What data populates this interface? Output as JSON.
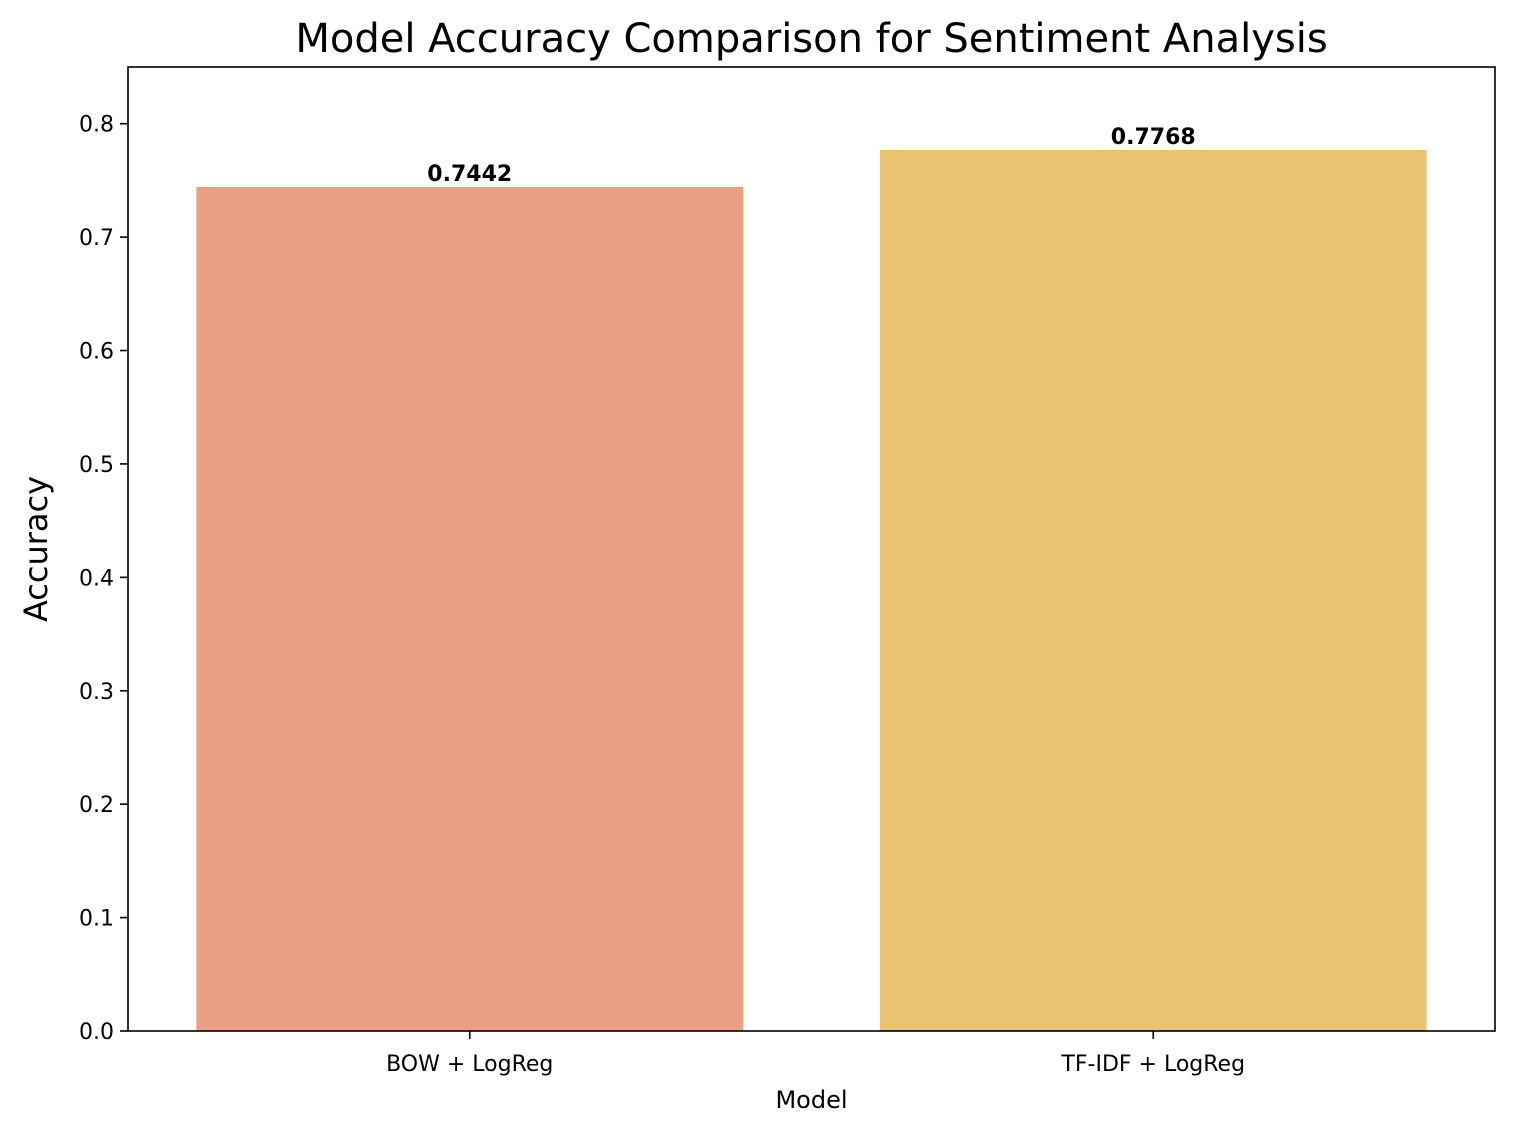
{
  "chart_data": {
    "type": "bar",
    "title": "Model Accuracy Comparison for Sentiment Analysis",
    "xlabel": "Model",
    "ylabel": "Accuracy",
    "categories": [
      "BOW + LogReg",
      "TF-IDF + LogReg"
    ],
    "values": [
      0.7442,
      0.7768
    ],
    "value_labels": [
      "0.7442",
      "0.7768"
    ],
    "bar_colors": [
      "#EB9F84",
      "#E9C272"
    ],
    "ylim": [
      0,
      0.85
    ],
    "yticks": [
      0.0,
      0.1,
      0.2,
      0.3,
      0.4,
      0.5,
      0.6,
      0.7,
      0.8
    ],
    "ytick_labels": [
      "0.0",
      "0.1",
      "0.2",
      "0.3",
      "0.4",
      "0.5",
      "0.6",
      "0.7",
      "0.8"
    ],
    "grid": false,
    "legend": false
  }
}
